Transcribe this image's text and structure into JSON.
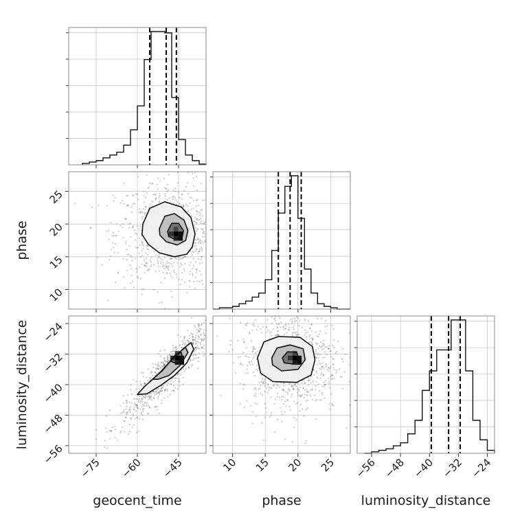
{
  "chart_data": [
    {
      "type": "histogram",
      "panel": "geocent_time 1D marginal",
      "x": {
        "label": "geocent_time",
        "range": [
          -85,
          -35
        ],
        "ticks": [
          -75,
          -60,
          -45
        ]
      },
      "bin_edges": [
        -80,
        -77.5,
        -75,
        -72.5,
        -70,
        -67.5,
        -65,
        -62.5,
        -60,
        -57.5,
        -55,
        -52.5,
        -50,
        -47.5,
        -45,
        -42.5,
        -40,
        -37.5,
        -35
      ],
      "counts": [
        1,
        2,
        3,
        5,
        7,
        9,
        14,
        25,
        42,
        75,
        95,
        95,
        94,
        48,
        18,
        7,
        3,
        0.5
      ],
      "quantiles": [
        -55.5,
        -49.5,
        -45.8
      ]
    },
    {
      "type": "histogram",
      "panel": "phase 1D marginal",
      "x": {
        "label": "phase",
        "range": [
          7,
          28
        ],
        "ticks": [
          10,
          15,
          20,
          25
        ]
      },
      "bin_edges": [
        7,
        8,
        9,
        10,
        11,
        12,
        13,
        14,
        15,
        16,
        17,
        18,
        19,
        20,
        21,
        22,
        23,
        24,
        25,
        26,
        27,
        28
      ],
      "counts": [
        0,
        1,
        1,
        2,
        4,
        6,
        9,
        12,
        22,
        44,
        72,
        92,
        100,
        68,
        30,
        12,
        4,
        2,
        1,
        0,
        0
      ],
      "quantiles": [
        17,
        18.8,
        20.5
      ]
    },
    {
      "type": "histogram",
      "panel": "luminosity_distance 1D marginal",
      "x": {
        "label": "luminosity_distance",
        "range": [
          -60,
          -22
        ],
        "ticks": [
          -56,
          -48,
          -40,
          -32,
          -24
        ]
      },
      "bin_edges": [
        -58,
        -56,
        -54,
        -52,
        -50,
        -48,
        -46,
        -44,
        -42,
        -40,
        -38,
        -36,
        -34,
        -32,
        -30,
        -28,
        -26,
        -24,
        -22
      ],
      "counts": [
        0,
        1,
        2,
        3,
        5,
        7,
        13,
        22,
        42,
        55,
        69,
        69,
        89,
        89,
        55,
        22,
        9,
        2
      ],
      "quantiles": [
        -39.5,
        -34.7,
        -31.5
      ]
    },
    {
      "type": "contour_scatter",
      "panel": "phase vs geocent_time",
      "x": {
        "label": "geocent_time",
        "range": [
          -85,
          -35
        ],
        "ticks": [
          -75,
          -60,
          -45
        ]
      },
      "y": {
        "label": "phase",
        "range": [
          7,
          28
        ],
        "ticks": [
          10,
          15,
          20,
          25
        ]
      },
      "density_center": [
        -46,
        18.5
      ],
      "contours": [
        [
          [
            -58,
            20
          ],
          [
            -55.5,
            22.4
          ],
          [
            -50,
            23.4
          ],
          [
            -44,
            22.6
          ],
          [
            -40.5,
            21
          ],
          [
            -39,
            18.5
          ],
          [
            -40,
            16.5
          ],
          [
            -42,
            15.4
          ],
          [
            -46.5,
            15
          ],
          [
            -52,
            15.6
          ],
          [
            -56,
            16.9
          ],
          [
            -58.3,
            18.4
          ],
          [
            -58,
            20
          ]
        ],
        [
          [
            -52,
            19.3
          ],
          [
            -50,
            21.2
          ],
          [
            -46.5,
            21.6
          ],
          [
            -43,
            20.6
          ],
          [
            -41.6,
            19
          ],
          [
            -42.4,
            17.5
          ],
          [
            -45.5,
            16.8
          ],
          [
            -49.5,
            17.3
          ],
          [
            -51.8,
            18.3
          ],
          [
            -52,
            19.3
          ]
        ],
        [
          [
            -49,
            18.9
          ],
          [
            -47.5,
            20.1
          ],
          [
            -45,
            20.1
          ],
          [
            -43.2,
            19
          ],
          [
            -43.8,
            17.8
          ],
          [
            -46.5,
            17.7
          ],
          [
            -48.6,
            18.1
          ],
          [
            -49,
            18.9
          ]
        ]
      ],
      "scatter": {
        "center": [
          -48,
          18.5
        ],
        "spread": [
          10,
          4
        ]
      }
    },
    {
      "type": "contour_scatter",
      "panel": "luminosity_distance vs geocent_time",
      "x": {
        "label": "geocent_time",
        "range": [
          -85,
          -35
        ],
        "ticks": [
          -75,
          -60,
          -45
        ]
      },
      "y": {
        "label": "luminosity_distance",
        "range": [
          -58,
          -22
        ],
        "ticks": [
          -56,
          -48,
          -40,
          -32,
          -24
        ]
      },
      "density_center": [
        -45.5,
        -33
      ],
      "contours": [
        [
          [
            -60,
            -42.6
          ],
          [
            -57.5,
            -40.6
          ],
          [
            -52,
            -37
          ],
          [
            -47.5,
            -33.5
          ],
          [
            -43,
            -30.4
          ],
          [
            -40.5,
            -29
          ],
          [
            -39.5,
            -30.7
          ],
          [
            -42,
            -34.3
          ],
          [
            -46.5,
            -37.6
          ],
          [
            -51.5,
            -40.2
          ],
          [
            -56.5,
            -42.4
          ],
          [
            -60,
            -42.6
          ]
        ],
        [
          [
            -54.5,
            -38.6
          ],
          [
            -51,
            -36.4
          ],
          [
            -46.5,
            -32.6
          ],
          [
            -42.5,
            -30.2
          ],
          [
            -41.6,
            -31.6
          ],
          [
            -44.5,
            -35
          ],
          [
            -48.5,
            -37.6
          ],
          [
            -52.5,
            -38.6
          ],
          [
            -54.5,
            -38.6
          ]
        ],
        [
          [
            -48,
            -33.8
          ],
          [
            -46,
            -32.1
          ],
          [
            -44,
            -31.6
          ],
          [
            -43.5,
            -33.1
          ],
          [
            -45.5,
            -34.6
          ],
          [
            -48,
            -33.8
          ]
        ]
      ],
      "scatter": {
        "center": [
          -48,
          -36
        ],
        "spread": [
          9,
          7
        ],
        "correlation": 0.92
      }
    },
    {
      "type": "contour_scatter",
      "panel": "luminosity_distance vs phase",
      "x": {
        "label": "phase",
        "range": [
          7,
          28
        ],
        "ticks": [
          10,
          15,
          20,
          25
        ]
      },
      "y": {
        "label": "luminosity_distance",
        "range": [
          -58,
          -22
        ],
        "ticks": [
          -56,
          -48,
          -40,
          -32,
          -24
        ]
      },
      "density_center": [
        19.5,
        -33
      ],
      "contours": [
        [
          [
            13.8,
            -33
          ],
          [
            14.8,
            -28.8
          ],
          [
            17,
            -27.4
          ],
          [
            20.3,
            -27.6
          ],
          [
            22.2,
            -30
          ],
          [
            22.6,
            -33.5
          ],
          [
            22,
            -37.5
          ],
          [
            19.8,
            -39.4
          ],
          [
            16.2,
            -39.2
          ],
          [
            14.3,
            -37
          ],
          [
            13.8,
            -33
          ]
        ],
        [
          [
            16,
            -33
          ],
          [
            16.8,
            -30.4
          ],
          [
            18.8,
            -29.6
          ],
          [
            20.8,
            -30.6
          ],
          [
            21.1,
            -33.5
          ],
          [
            20,
            -36
          ],
          [
            17.5,
            -36.4
          ],
          [
            16.1,
            -34.8
          ],
          [
            16,
            -33
          ]
        ],
        [
          [
            17.6,
            -33
          ],
          [
            18.4,
            -31.4
          ],
          [
            19.8,
            -31.5
          ],
          [
            20.2,
            -33.3
          ],
          [
            19.2,
            -34.6
          ],
          [
            17.9,
            -34.3
          ],
          [
            17.6,
            -33
          ]
        ]
      ],
      "scatter": {
        "center": [
          18.8,
          -33.5
        ],
        "spread": [
          3.8,
          7
        ]
      }
    }
  ],
  "labels": {
    "geocent_time": "geocent_time",
    "phase": "phase",
    "luminosity_distance": "luminosity_distance"
  }
}
